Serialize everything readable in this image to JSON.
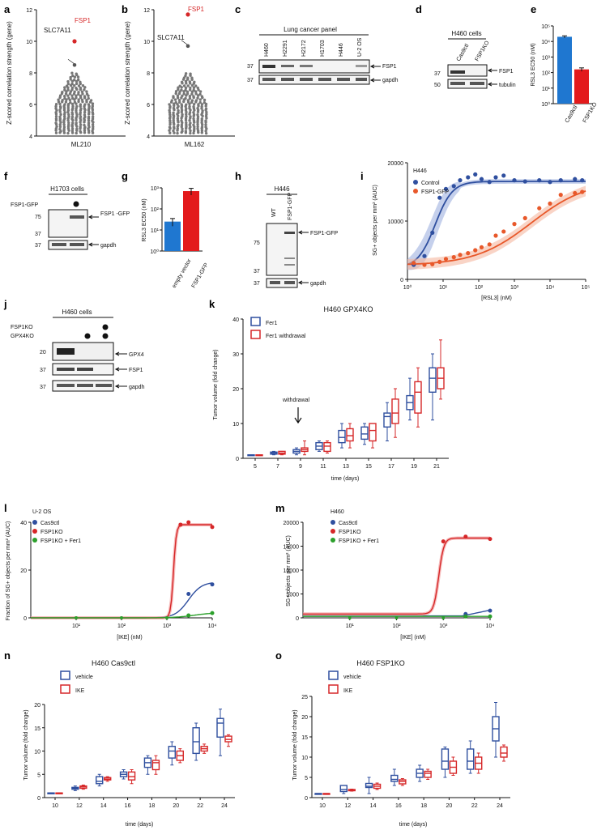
{
  "panels": {
    "a": {
      "letter": "a",
      "ylabel": "Z-scored correlation strength (gene)",
      "xlabel": "ML210",
      "top_label": "FSP1",
      "second_label": "SLC7A11"
    },
    "b": {
      "letter": "b",
      "ylabel": "Z-scored correlation strength (gene)",
      "xlabel": "ML162",
      "top_label": "FSP1",
      "second_label": "SLC7A11"
    },
    "c": {
      "letter": "c",
      "header": "Lung cancer panel",
      "lanes": [
        "H460",
        "H2291",
        "H2172",
        "H1703",
        "H446",
        "U-2 OS"
      ],
      "marker1": "37",
      "marker2": "37",
      "band1": "FSP1",
      "band2": "gapdh"
    },
    "d": {
      "letter": "d",
      "header": "H460 cells",
      "lanes": [
        "Cas9ctl",
        "FSP1KO"
      ],
      "marker1": "37",
      "marker2": "50",
      "band1": "FSP1",
      "band2": "tubulin"
    },
    "e": {
      "letter": "e",
      "ylabel": "RSL3 EC50 (nM)",
      "xlabels": [
        "Cas9ctl",
        "FSP1KO"
      ]
    },
    "f": {
      "letter": "f",
      "header": "H1703 cells",
      "row_label": "FSP1-GFP",
      "marker1": "75",
      "marker2": "37",
      "marker3": "37",
      "band1": "FSP1 -GFP",
      "band2": "gapdh"
    },
    "g": {
      "letter": "g",
      "ylabel": "RSL3 EC50 (nM)",
      "xlabels": [
        "empty vector",
        "FSP1-GFP"
      ]
    },
    "h": {
      "letter": "h",
      "header": "H446",
      "lanes": [
        "WT",
        "FSP1-GFP"
      ],
      "marker1": "75",
      "marker2": "37",
      "marker3": "37",
      "band1": "FSP1-GFP",
      "band2": "gapdh"
    },
    "i": {
      "letter": "i",
      "cell": "H446",
      "legend": [
        "Control",
        "FSP1-GFP"
      ],
      "ylabel": "SG+ objects per mm² (AUC)",
      "xlabel": "[RSL3] (nM)"
    },
    "j": {
      "letter": "j",
      "header": "H460 cells",
      "row1": "FSP1KO",
      "row2": "GPX4KO",
      "marker1": "20",
      "marker2": "37",
      "marker3": "37",
      "band1": "GPX4",
      "band2": "FSP1",
      "band3": "gapdh"
    },
    "k": {
      "letter": "k",
      "title": "H460 GPX4KO",
      "legend": [
        "Fer1",
        "Fer1 withdrawal"
      ],
      "ylabel": "Tumor volume (fold change)",
      "xlabel": "time (days)",
      "annotation": "withdrawal"
    },
    "l": {
      "letter": "l",
      "cell": "U-2 OS",
      "legend": [
        "Cas9ctl",
        "FSP1KO",
        "FSP1KO + Fer1"
      ],
      "ylabel": "Fraction of SG+ objects per mm² (AUC)",
      "xlabel": "[IKE] (nM)"
    },
    "m": {
      "letter": "m",
      "cell": "H460",
      "legend": [
        "Cas9ctl",
        "FSP1KO",
        "FSP1KO + Fer1"
      ],
      "ylabel": "SG+ objects per mm² (AUC)",
      "xlabel": "[IKE] (nM)"
    },
    "n": {
      "letter": "n",
      "title": "H460 Cas9ctl",
      "legend": [
        "vehicle",
        "IKE"
      ],
      "ylabel": "Tumor volume (fold change)",
      "xlabel": "time (days)"
    },
    "o": {
      "letter": "o",
      "title": "H460 FSP1KO",
      "legend": [
        "vehicle",
        "IKE"
      ],
      "ylabel": "Tumor volume (fold change)",
      "xlabel": "time (days)"
    }
  },
  "colors": {
    "blue": "#2f4f9f",
    "red": "#d62728",
    "green": "#2ca02c",
    "orange": "#e8582a",
    "bar_blue": "#1f77d0",
    "bar_red": "#e31a1c",
    "gray": "#666666"
  },
  "chart_data": [
    {
      "panel": "a",
      "type": "scatter",
      "title": "",
      "xlabel": "ML210",
      "ylabel": "Z-scored correlation strength (gene)",
      "ylim": [
        4,
        12
      ],
      "yticks": [
        4,
        6,
        8,
        10,
        12
      ],
      "highlight": [
        {
          "label": "FSP1",
          "y": 10.0
        },
        {
          "label": "SLC7A11",
          "y": 8.5
        }
      ]
    },
    {
      "panel": "b",
      "type": "scatter",
      "title": "",
      "xlabel": "ML162",
      "ylabel": "Z-scored correlation strength (gene)",
      "ylim": [
        4,
        12
      ],
      "yticks": [
        4,
        6,
        8,
        10,
        12
      ],
      "highlight": [
        {
          "label": "FSP1",
          "y": 11.7
        },
        {
          "label": "SLC7A11",
          "y": 9.7
        }
      ]
    },
    {
      "panel": "e",
      "type": "bar",
      "categories": [
        "Cas9ctl",
        "FSP1KO"
      ],
      "values": [
        20000,
        160
      ],
      "errors": [
        3000,
        40
      ],
      "ylabel": "RSL3 EC50 (nM)",
      "ylim": [
        1,
        100000
      ],
      "yscale": "log",
      "yticks": [
        "10⁰",
        "10¹",
        "10²",
        "10³",
        "10⁴",
        "10⁵"
      ]
    },
    {
      "panel": "g",
      "type": "bar",
      "categories": [
        "empty vector",
        "FSP1-GFP"
      ],
      "values": [
        25,
        700
      ],
      "errors": [
        10,
        250
      ],
      "ylabel": "RSL3 EC50 (nM)",
      "ylim": [
        1,
        1000
      ],
      "yscale": "log",
      "yticks": [
        "10⁰",
        "10¹",
        "10²",
        "10³"
      ]
    },
    {
      "panel": "i",
      "type": "scatter",
      "xlabel": "[RSL3] (nM)",
      "ylabel": "SG+ objects per mm² (AUC)",
      "xscale": "log",
      "xlim": [
        1,
        100000
      ],
      "ylim": [
        0,
        20000
      ],
      "yticks": [
        0,
        10000,
        20000
      ],
      "xticks": [
        "10⁰",
        "10¹",
        "10²",
        "10³",
        "10⁴",
        "10⁵"
      ],
      "series": [
        {
          "name": "Control",
          "x": [
            1.5,
            3,
            5,
            8,
            12,
            20,
            30,
            50,
            80,
            120,
            200,
            300,
            500,
            1000,
            2000,
            5000,
            10000,
            20000,
            50000,
            80000
          ],
          "y": [
            2500,
            4000,
            8000,
            14000,
            15500,
            16000,
            17000,
            17500,
            18000,
            17200,
            16700,
            17500,
            17800,
            17000,
            16800,
            17000,
            16700,
            17000,
            17200,
            17000
          ]
        },
        {
          "name": "FSP1-GFP",
          "x": [
            1.5,
            3,
            5,
            8,
            12,
            20,
            30,
            50,
            80,
            120,
            200,
            300,
            500,
            1000,
            2000,
            5000,
            10000,
            20000,
            50000,
            80000
          ],
          "y": [
            2800,
            2500,
            2600,
            3000,
            3500,
            3800,
            4200,
            4500,
            5000,
            5500,
            6000,
            7500,
            8200,
            9500,
            10500,
            12200,
            13000,
            14500,
            14800,
            15000
          ]
        }
      ]
    },
    {
      "panel": "k",
      "type": "box",
      "xlabel": "time (days)",
      "ylabel": "Tumor volume (fold change)",
      "ylim": [
        0,
        40
      ],
      "yticks": [
        0,
        10,
        20,
        30,
        40
      ],
      "categories": [
        5,
        7,
        9,
        11,
        13,
        15,
        17,
        19,
        21
      ],
      "series": [
        {
          "name": "Fer1",
          "median": [
            1,
            1.5,
            2,
            3.5,
            6,
            7,
            12,
            16,
            23
          ],
          "q1": [
            1,
            1.2,
            1.5,
            2.5,
            4.5,
            5.5,
            9,
            14,
            19
          ],
          "q3": [
            1,
            1.8,
            2.5,
            4.5,
            8,
            9,
            13,
            18,
            26
          ],
          "min": [
            1,
            1,
            1,
            2,
            3,
            4,
            5,
            11,
            11
          ],
          "max": [
            1,
            2,
            3,
            5,
            10,
            10,
            16,
            23,
            30
          ]
        },
        {
          "name": "Fer1 withdrawal",
          "median": [
            1,
            1.5,
            2.5,
            3.5,
            6.5,
            8,
            13,
            19,
            23
          ],
          "q1": [
            1,
            1.2,
            2,
            2,
            5,
            5,
            10,
            13,
            20
          ],
          "q3": [
            1,
            2,
            3,
            4.5,
            8.5,
            10,
            17,
            22,
            26
          ],
          "min": [
            1,
            1,
            1,
            1.5,
            3,
            3,
            6,
            9,
            17
          ],
          "max": [
            1,
            2,
            5,
            5,
            10,
            10,
            20,
            26,
            34
          ]
        }
      ]
    },
    {
      "panel": "l",
      "type": "line",
      "xlabel": "[IKE] (nM)",
      "ylabel": "Fraction of SG+ objects per mm² (AUC)",
      "xscale": "log",
      "xlim": [
        1,
        10000
      ],
      "ylim": [
        0,
        40
      ],
      "yticks": [
        0,
        20,
        40
      ],
      "xticks": [
        "10¹",
        "10²",
        "10³",
        "10⁴"
      ],
      "series": [
        {
          "name": "Cas9ctl",
          "x": [
            1,
            3000,
            10000
          ],
          "y": [
            0,
            10,
            14
          ]
        },
        {
          "name": "FSP1KO",
          "x": [
            1,
            2000,
            3000,
            10000
          ],
          "y": [
            0,
            39,
            40,
            38
          ]
        },
        {
          "name": "FSP1KO + Fer1",
          "x": [
            1,
            3000,
            10000
          ],
          "y": [
            0,
            1,
            2
          ]
        }
      ]
    },
    {
      "panel": "m",
      "type": "line",
      "xlabel": "[IKE] (nM)",
      "ylabel": "SG+ objects per mm² (AUC)",
      "xscale": "log",
      "xlim": [
        1,
        10000
      ],
      "ylim": [
        0,
        20000
      ],
      "yticks": [
        0,
        5000,
        10000,
        15000,
        20000
      ],
      "xticks": [
        "10¹",
        "10²",
        "10³",
        "10⁴"
      ],
      "series": [
        {
          "name": "Cas9ctl",
          "x": [
            1,
            3000,
            10000
          ],
          "y": [
            500,
            800,
            1500
          ]
        },
        {
          "name": "FSP1KO",
          "x": [
            1,
            1000,
            3000,
            10000
          ],
          "y": [
            800,
            16000,
            17000,
            16500
          ]
        },
        {
          "name": "FSP1KO + Fer1",
          "x": [
            1,
            3000,
            10000
          ],
          "y": [
            300,
            300,
            300
          ]
        }
      ]
    },
    {
      "panel": "n",
      "type": "box",
      "xlabel": "time (days)",
      "ylabel": "Tumor volume (fold change)",
      "ylim": [
        0,
        20
      ],
      "yticks": [
        0,
        5,
        10,
        15,
        20
      ],
      "categories": [
        10,
        12,
        14,
        16,
        18,
        20,
        22,
        24
      ],
      "series": [
        {
          "name": "vehicle",
          "median": [
            1,
            2,
            3.5,
            5,
            7.5,
            10,
            12,
            16
          ],
          "q1": [
            1,
            1.8,
            3,
            4.5,
            6.5,
            8.5,
            9.5,
            13
          ],
          "q3": [
            1,
            2.2,
            4.5,
            5.5,
            8.5,
            11,
            15,
            17
          ],
          "min": [
            1,
            1.5,
            2.5,
            4,
            5,
            7,
            8,
            9
          ],
          "max": [
            1,
            2.5,
            5,
            6,
            9,
            12,
            16,
            19
          ]
        },
        {
          "name": "IKE",
          "median": [
            1,
            2.3,
            4,
            4.5,
            7.5,
            9,
            10.5,
            12.5
          ],
          "q1": [
            1,
            2,
            3.8,
            3.8,
            6,
            8,
            10,
            12
          ],
          "q3": [
            1,
            2.5,
            4.3,
            5.5,
            8,
            10,
            11,
            13.2
          ],
          "min": [
            1,
            1.8,
            3.5,
            3,
            5,
            7.5,
            9.5,
            11
          ],
          "max": [
            1,
            2.7,
            4.5,
            6,
            9,
            10.5,
            11.5,
            13.5
          ]
        }
      ]
    },
    {
      "panel": "o",
      "type": "box",
      "xlabel": "time (days)",
      "ylabel": "Tumor volume (fold change)",
      "ylim": [
        0,
        25
      ],
      "yticks": [
        0,
        5,
        10,
        15,
        20,
        25
      ],
      "categories": [
        10,
        12,
        14,
        16,
        18,
        20,
        22,
        24
      ],
      "series": [
        {
          "name": "vehicle",
          "median": [
            1,
            2,
            2.8,
            4.5,
            6,
            9,
            9,
            17
          ],
          "q1": [
            1,
            1.5,
            2.5,
            4,
            5,
            7,
            7,
            14
          ],
          "q3": [
            1,
            3,
            3.5,
            5.5,
            7,
            12,
            12,
            20
          ],
          "min": [
            1,
            1,
            1,
            3,
            4,
            5,
            6,
            10
          ],
          "max": [
            1,
            3,
            5,
            7,
            8,
            12.5,
            14,
            23.5
          ]
        },
        {
          "name": "IKE",
          "median": [
            1,
            1.9,
            2.8,
            4,
            6,
            7.5,
            8.5,
            11
          ],
          "q1": [
            1,
            1.7,
            2.3,
            3.4,
            5,
            6,
            7,
            10
          ],
          "q3": [
            1,
            2,
            3.3,
            4.4,
            6.5,
            9,
            10,
            12.5
          ],
          "min": [
            1,
            1.6,
            2,
            3,
            4.5,
            5.5,
            6,
            9
          ],
          "max": [
            1,
            2.1,
            3.6,
            4.7,
            7,
            10,
            11,
            13
          ]
        }
      ]
    }
  ]
}
